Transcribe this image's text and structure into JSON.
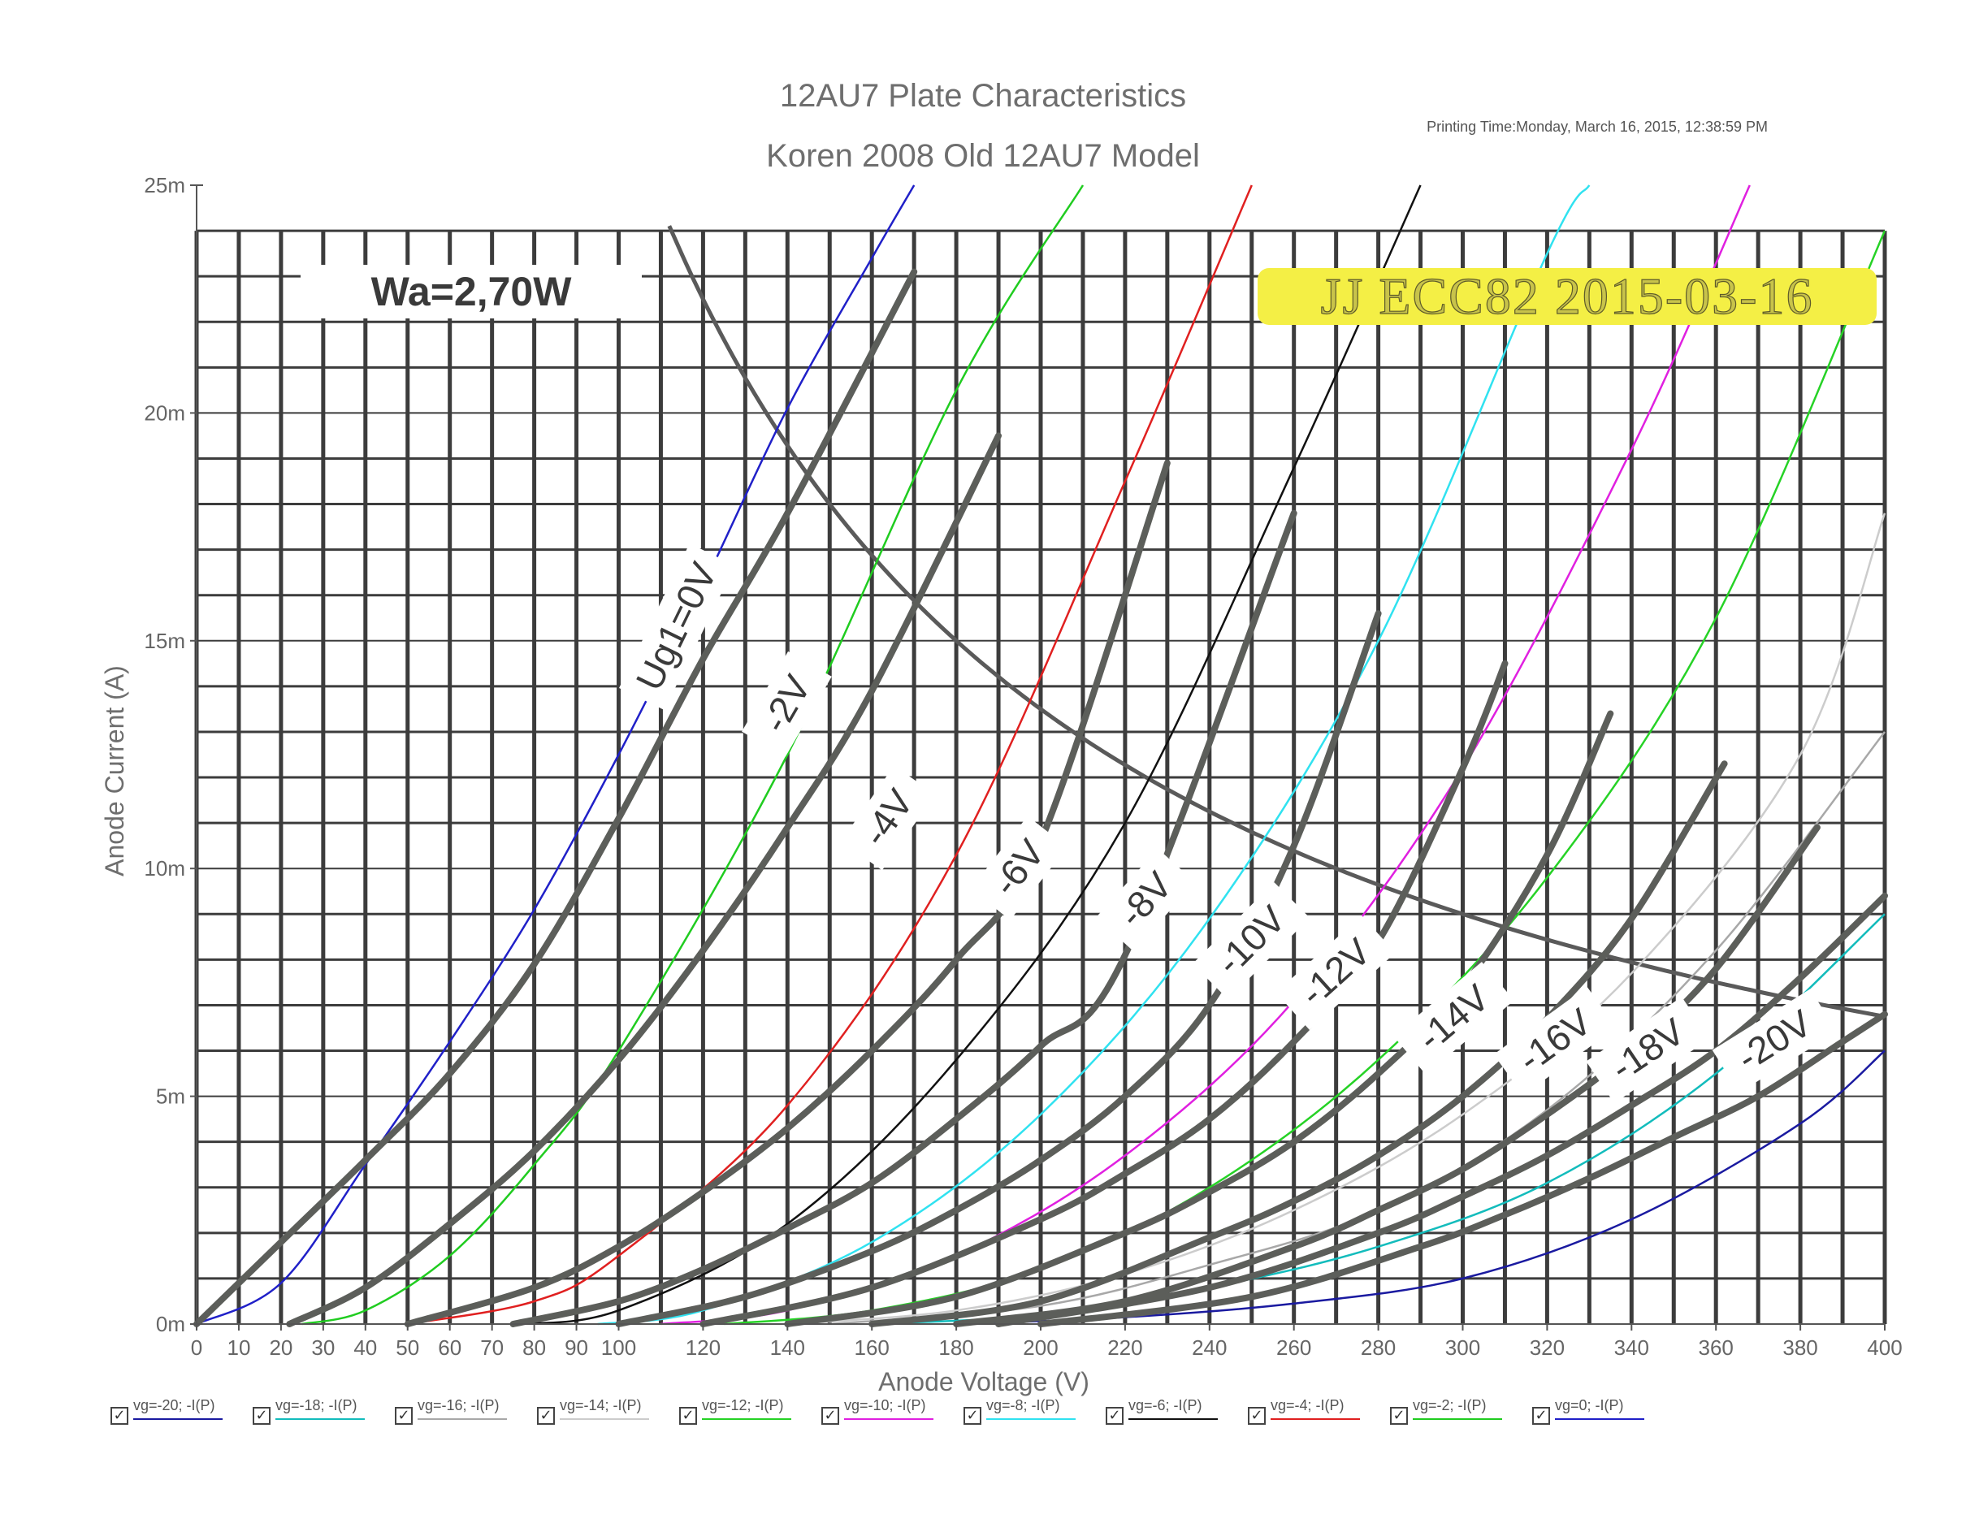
{
  "chart_data": {
    "type": "line",
    "title": "12AU7 Plate Characteristics",
    "subtitle": "Koren 2008 Old 12AU7 Model",
    "printing_time": "Printing Time:Monday, March 16, 2015, 12:38:59 PM",
    "xlabel": "Anode Voltage (V)",
    "ylabel": "Anode Current (A)",
    "xlim": [
      0,
      400
    ],
    "ylim": [
      0,
      25
    ],
    "x_ticks": [
      0,
      10,
      20,
      30,
      40,
      50,
      60,
      70,
      80,
      90,
      100,
      120,
      140,
      160,
      180,
      200,
      220,
      240,
      260,
      280,
      300,
      320,
      340,
      360,
      380,
      400
    ],
    "y_ticks": [
      {
        "value": 0,
        "label": "0m"
      },
      {
        "value": 5,
        "label": "5m"
      },
      {
        "value": 10,
        "label": "10m"
      },
      {
        "value": 15,
        "label": "15m"
      },
      {
        "value": 20,
        "label": "20m"
      },
      {
        "value": 25,
        "label": "25m"
      }
    ],
    "grid": true,
    "series": [
      {
        "name": "vg=-20; -I(P)",
        "color": "#1a1aa0",
        "x": [
          180,
          220,
          260,
          300,
          340,
          380,
          400
        ],
        "y": [
          0,
          0.15,
          0.45,
          1.0,
          2.3,
          4.4,
          6.0
        ]
      },
      {
        "name": "vg=-18; -I(P)",
        "color": "#13bcbc",
        "x": [
          160,
          200,
          240,
          280,
          320,
          360,
          400
        ],
        "y": [
          0,
          0.2,
          0.8,
          1.7,
          3.1,
          5.5,
          9.0
        ]
      },
      {
        "name": "vg=-16; -I(P)",
        "color": "#a8a8a8",
        "x": [
          150,
          200,
          240,
          280,
          320,
          360,
          400
        ],
        "y": [
          0,
          0.4,
          1.3,
          2.5,
          4.7,
          8.2,
          13.0
        ]
      },
      {
        "name": "vg=-14; -I(P)",
        "color": "#cccccc",
        "x": [
          140,
          180,
          220,
          260,
          300,
          340,
          380,
          400
        ],
        "y": [
          0,
          0.3,
          1.1,
          2.5,
          4.6,
          7.7,
          12.5,
          17.8
        ]
      },
      {
        "name": "vg=-12; -I(P)",
        "color": "#26d226",
        "x": [
          125,
          160,
          200,
          240,
          280,
          320,
          360,
          400
        ],
        "y": [
          0,
          0.3,
          1.2,
          3.0,
          5.8,
          9.8,
          15.5,
          24.0
        ]
      },
      {
        "name": "vg=-10; -I(P)",
        "color": "#e020e0",
        "x": [
          110,
          140,
          180,
          220,
          260,
          300,
          340,
          368
        ],
        "y": [
          0,
          0.3,
          1.5,
          3.7,
          7.1,
          12.2,
          19.2,
          25.0
        ]
      },
      {
        "name": "vg=-8; -I(P)",
        "color": "#30e2f0",
        "x": [
          95,
          120,
          160,
          200,
          240,
          280,
          320,
          330
        ],
        "y": [
          0,
          0.3,
          1.8,
          4.6,
          8.9,
          15.0,
          23.5,
          25.0
        ]
      },
      {
        "name": "vg=-6; -I(P)",
        "color": "#111111",
        "x": [
          75,
          100,
          140,
          180,
          220,
          260,
          290
        ],
        "y": [
          0,
          0.3,
          2.2,
          5.8,
          11.0,
          18.8,
          25.0
        ]
      },
      {
        "name": "vg=-4; -I(P)",
        "color": "#e02020",
        "x": [
          50,
          80,
          100,
          140,
          180,
          220,
          250
        ],
        "y": [
          0,
          0.5,
          1.5,
          4.8,
          10.3,
          18.5,
          25.0
        ]
      },
      {
        "name": "vg=-2; -I(P)",
        "color": "#20cc20",
        "x": [
          25,
          40,
          60,
          80,
          100,
          140,
          180,
          210
        ],
        "y": [
          0,
          0.3,
          1.5,
          3.5,
          6.0,
          12.5,
          20.5,
          25.0
        ]
      },
      {
        "name": "vg=0; -I(P)",
        "color": "#2020c8",
        "x": [
          0,
          20,
          40,
          60,
          80,
          100,
          120,
          140,
          160,
          170
        ],
        "y": [
          0,
          0.9,
          3.5,
          6.2,
          9.1,
          12.5,
          16.2,
          20.1,
          23.4,
          25.0
        ]
      }
    ],
    "measured_curves": [
      {
        "x": [
          0,
          20,
          40,
          60,
          80,
          100,
          120,
          140,
          170
        ],
        "y": [
          0,
          1.8,
          3.6,
          5.5,
          7.9,
          11.1,
          14.6,
          17.8,
          23.1
        ]
      },
      {
        "x": [
          22,
          40,
          60,
          80,
          100,
          120,
          140,
          160,
          190
        ],
        "y": [
          0,
          0.8,
          2.2,
          3.8,
          5.8,
          8.2,
          10.9,
          13.9,
          19.5
        ]
      },
      {
        "x": [
          50,
          80,
          100,
          120,
          140,
          160,
          180,
          200,
          230
        ],
        "y": [
          0,
          0.8,
          1.7,
          2.9,
          4.3,
          6.0,
          8.0,
          10.6,
          18.9
        ]
      },
      {
        "x": [
          75,
          100,
          120,
          140,
          160,
          180,
          200,
          220,
          260
        ],
        "y": [
          0,
          0.5,
          1.2,
          2.1,
          3.1,
          4.5,
          6.1,
          8.1,
          17.8
        ]
      },
      {
        "x": [
          100,
          130,
          160,
          180,
          200,
          220,
          240,
          260,
          280
        ],
        "y": [
          0,
          0.6,
          1.6,
          2.5,
          3.6,
          5.0,
          7.0,
          10.5,
          15.6
        ]
      },
      {
        "x": [
          120,
          160,
          200,
          220,
          240,
          260,
          280,
          300,
          310
        ],
        "y": [
          0,
          0.8,
          2.3,
          3.3,
          4.5,
          6.2,
          8.4,
          12.2,
          14.5
        ]
      },
      {
        "x": [
          140,
          180,
          220,
          240,
          260,
          280,
          300,
          320,
          335
        ],
        "y": [
          0,
          0.6,
          2.0,
          2.9,
          4.0,
          5.5,
          7.4,
          10.3,
          13.4
        ]
      },
      {
        "x": [
          160,
          200,
          240,
          260,
          280,
          300,
          320,
          340,
          362
        ],
        "y": [
          0,
          0.5,
          1.9,
          2.7,
          3.7,
          5.0,
          6.7,
          8.9,
          12.3
        ]
      },
      {
        "x": [
          180,
          220,
          260,
          280,
          300,
          320,
          340,
          360,
          384
        ],
        "y": [
          0,
          0.5,
          1.7,
          2.5,
          3.4,
          4.6,
          6.0,
          7.8,
          10.9
        ]
      },
      {
        "x": [
          190,
          240,
          280,
          300,
          320,
          340,
          360,
          380,
          400
        ],
        "y": [
          0,
          0.8,
          2.0,
          2.8,
          3.7,
          4.8,
          6.0,
          7.6,
          9.4
        ]
      },
      {
        "x": [
          200,
          250,
          290,
          310,
          330,
          350,
          370,
          390,
          400
        ],
        "y": [
          0,
          0.6,
          1.7,
          2.4,
          3.2,
          4.1,
          5.0,
          6.2,
          6.8
        ]
      }
    ],
    "power_curve": {
      "label": "Wa=2,70W",
      "watts": 2.7
    },
    "curve_labels": [
      {
        "text": "Ug1=0V",
        "x": 114,
        "y": 15.3,
        "angle": -64
      },
      {
        "text": "-2V",
        "x": 140,
        "y": 13.6,
        "angle": -60
      },
      {
        "text": "-4V",
        "x": 164,
        "y": 11.1,
        "angle": -55
      },
      {
        "text": "-6V",
        "x": 195,
        "y": 10.0,
        "angle": -52
      },
      {
        "text": "-8V",
        "x": 225,
        "y": 9.3,
        "angle": -48
      },
      {
        "text": "-10V",
        "x": 250,
        "y": 8.4,
        "angle": -45
      },
      {
        "text": "-12V",
        "x": 270,
        "y": 7.7,
        "angle": -42
      },
      {
        "text": "-14V",
        "x": 298,
        "y": 6.7,
        "angle": -40
      },
      {
        "text": "-16V",
        "x": 322,
        "y": 6.2,
        "angle": -36
      },
      {
        "text": "-18V",
        "x": 344,
        "y": 6.0,
        "angle": -34
      },
      {
        "text": "-20V",
        "x": 374,
        "y": 6.2,
        "angle": -32
      }
    ],
    "annotation_label": "JJ ECC82 2015-03-16",
    "legend_position": "bottom"
  }
}
